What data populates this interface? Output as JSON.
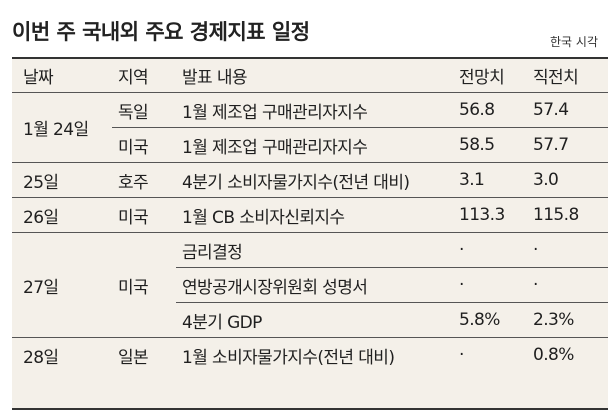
{
  "title": "이번 주 국내외 주요 경제지표 일정",
  "timezone_note": "한국 시각",
  "table": {
    "headers": [
      "날짜",
      "지역",
      "발표 내용",
      "전망치",
      "직전치"
    ],
    "groups": [
      {
        "date": "1월 24일",
        "rows": [
          {
            "region": "독일",
            "item": "1월 제조업 구매관리자지수",
            "forecast": "56.8",
            "previous": "57.4"
          },
          {
            "region": "미국",
            "item": "1월 제조업 구매관리자지수",
            "forecast": "58.5",
            "previous": "57.7"
          }
        ]
      },
      {
        "date": "25일",
        "rows": [
          {
            "region": "호주",
            "item": "4분기 소비자물가지수(전년 대비)",
            "forecast": "3.1",
            "previous": "3.0"
          }
        ]
      },
      {
        "date": "26일",
        "rows": [
          {
            "region": "미국",
            "item": "1월 CB 소비자신뢰지수",
            "forecast": "113.3",
            "previous": "115.8"
          }
        ]
      },
      {
        "date": "27일",
        "region": "미국",
        "rows": [
          {
            "item": "금리결정",
            "forecast": "·",
            "previous": "·"
          },
          {
            "item": "연방공개시장위원회 성명서",
            "forecast": "·",
            "previous": "·"
          },
          {
            "item": "4분기 GDP",
            "forecast": "5.8%",
            "previous": "2.3%"
          }
        ]
      },
      {
        "date": "28일",
        "rows": [
          {
            "region": "일본",
            "item": "1월 소비자물가지수(전년 대비)",
            "forecast": "·",
            "previous": "0.8%"
          }
        ]
      }
    ]
  }
}
